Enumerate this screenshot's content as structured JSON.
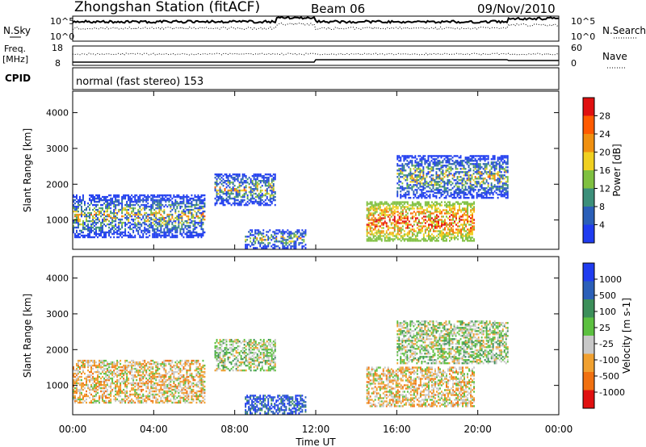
{
  "header": {
    "title": "Zhongshan Station (fitACF)",
    "beam": "Beam 06",
    "date": "09/Nov/2010"
  },
  "noise_panel": {
    "left_label": "N.Sky",
    "right_label": "N.Search",
    "left_ticks": [
      "10^5",
      "10^0"
    ],
    "right_ticks": [
      "10^5",
      "10^0"
    ]
  },
  "freq_panel": {
    "left_label_lines": [
      "Freq.",
      "[MHz]"
    ],
    "left_ticks": [
      "18",
      "8"
    ],
    "right_label": "Nave",
    "right_ticks": [
      "60",
      "0"
    ]
  },
  "cpid": {
    "label": "CPID",
    "text": "normal (fast stereo) 153"
  },
  "xaxis": {
    "label": "Time UT",
    "ticks": [
      "00:00",
      "04:00",
      "08:00",
      "12:00",
      "16:00",
      "20:00",
      "00:00"
    ]
  },
  "chart_data": [
    {
      "type": "heatmap",
      "name_panel": "power",
      "ylabel": "Slant Range [km]",
      "yticks": [
        "1000",
        "2000",
        "3000",
        "4000"
      ],
      "ylim": [
        180,
        4600
      ],
      "xlim_hours": [
        0,
        24
      ],
      "colorbar_label": "Power [dB]",
      "colorbar_ticks": [
        "4",
        "8",
        "12",
        "16",
        "20",
        "24",
        "28"
      ],
      "colors": [
        "#1f3cf0",
        "#2b5fb8",
        "#3c8f7a",
        "#7fc040",
        "#f0d020",
        "#f09010",
        "#ff5a00",
        "#e01010"
      ],
      "echo_regions": [
        {
          "t0": 0.0,
          "t1": 6.5,
          "r0": 500,
          "r1": 1700
        },
        {
          "t0": 7.0,
          "t1": 10.0,
          "r0": 1400,
          "r1": 2300
        },
        {
          "t0": 8.5,
          "t1": 11.5,
          "r0": 200,
          "r1": 700
        },
        {
          "t0": 14.5,
          "t1": 19.8,
          "r0": 400,
          "r1": 1500
        },
        {
          "t0": 16.0,
          "t1": 21.5,
          "r0": 1600,
          "r1": 2800
        }
      ]
    },
    {
      "type": "heatmap",
      "name_panel": "velocity",
      "ylabel": "Slant Range [km]",
      "yticks": [
        "1000",
        "2000",
        "3000",
        "4000"
      ],
      "ylim": [
        180,
        4600
      ],
      "xlim_hours": [
        0,
        24
      ],
      "colorbar_label": "Velocity [m s-1]",
      "colorbar_ticks": [
        "1000",
        "500",
        "100",
        "25",
        "-25",
        "-100",
        "-500",
        "-1000"
      ],
      "colors": [
        "#1f3cf0",
        "#2b5fb8",
        "#3c8f5a",
        "#5cc040",
        "#c8c8c8",
        "#f0a030",
        "#f07010",
        "#e01010"
      ],
      "echo_regions": [
        {
          "t0": 0.0,
          "t1": 6.5,
          "r0": 500,
          "r1": 1700
        },
        {
          "t0": 7.0,
          "t1": 10.0,
          "r0": 1400,
          "r1": 2300
        },
        {
          "t0": 8.5,
          "t1": 11.5,
          "r0": 200,
          "r1": 700
        },
        {
          "t0": 14.5,
          "t1": 19.8,
          "r0": 400,
          "r1": 1500
        },
        {
          "t0": 16.0,
          "t1": 21.5,
          "r0": 1600,
          "r1": 2800
        }
      ]
    }
  ]
}
